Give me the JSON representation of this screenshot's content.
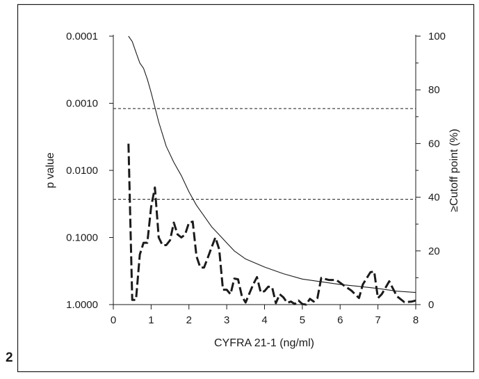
{
  "figure": {
    "panel_label": "2"
  },
  "chart_data": {
    "type": "line",
    "title": "",
    "xlabel": "CYFRA 21-1 (ng/ml)",
    "ylabel": "p value",
    "y2label": "≥Cutoff point (%)",
    "xlim": [
      0,
      8
    ],
    "x_ticks": [
      0,
      1,
      2,
      3,
      4,
      5,
      6,
      7,
      8
    ],
    "y_scale": "log-reversed",
    "ylim": [
      0.0001,
      1.0
    ],
    "y_ticks": [
      "0.0001",
      "0.0010",
      "0.0100",
      "0.1000",
      "1.0000"
    ],
    "y2lim": [
      0,
      100
    ],
    "y2_ticks": [
      0,
      20,
      40,
      60,
      80,
      100
    ],
    "y2_minor_step": 10,
    "grid": false,
    "reference_lines_p": [
      0.0012,
      0.027
    ],
    "series": [
      {
        "name": "",
        "axis": "y",
        "style": "dashed-bold",
        "x": [
          0.4,
          0.5,
          0.6,
          0.7,
          0.8,
          0.9,
          1.0,
          1.1,
          1.2,
          1.3,
          1.4,
          1.5,
          1.6,
          1.7,
          1.8,
          1.9,
          2.0,
          2.1,
          2.2,
          2.3,
          2.4,
          2.5,
          2.6,
          2.7,
          2.8,
          2.9,
          3.0,
          3.1,
          3.2,
          3.3,
          3.4,
          3.5,
          3.6,
          3.7,
          3.8,
          3.9,
          4.0,
          4.1,
          4.2,
          4.3,
          4.4,
          4.5,
          4.6,
          4.7,
          4.8,
          4.9,
          5.0,
          5.1,
          5.2,
          5.3,
          5.4,
          5.5,
          5.7,
          5.9,
          6.1,
          6.3,
          6.5,
          6.6,
          6.8,
          6.9,
          7.0,
          7.1,
          7.3,
          7.5,
          7.7,
          7.9,
          8.0
        ],
        "values": [
          0.004,
          0.85,
          0.85,
          0.18,
          0.12,
          0.12,
          0.035,
          0.018,
          0.1,
          0.13,
          0.13,
          0.11,
          0.06,
          0.09,
          0.1,
          0.09,
          0.06,
          0.058,
          0.19,
          0.28,
          0.28,
          0.2,
          0.14,
          0.1,
          0.15,
          0.6,
          0.6,
          0.7,
          0.41,
          0.42,
          0.75,
          0.93,
          0.68,
          0.5,
          0.39,
          0.66,
          0.63,
          0.54,
          0.55,
          0.95,
          0.7,
          0.78,
          0.94,
          0.9,
          0.98,
          0.87,
          0.98,
          1.0,
          0.82,
          0.9,
          0.8,
          0.4,
          0.43,
          0.43,
          0.52,
          0.62,
          0.8,
          0.5,
          0.33,
          0.32,
          0.8,
          0.7,
          0.45,
          0.75,
          0.92,
          0.9,
          0.87
        ]
      },
      {
        "name": "",
        "axis": "y2",
        "style": "solid-thin",
        "x": [
          0.4,
          0.5,
          0.6,
          0.7,
          0.8,
          0.9,
          1.0,
          1.2,
          1.4,
          1.6,
          1.8,
          2.0,
          2.2,
          2.4,
          2.6,
          2.8,
          3.0,
          3.2,
          3.5,
          4.0,
          4.5,
          5.0,
          5.5,
          6.0,
          6.5,
          7.0,
          7.5,
          8.0
        ],
        "values": [
          100,
          98,
          94,
          90,
          88,
          84,
          79,
          68,
          59,
          53,
          48,
          42,
          37,
          33,
          29,
          26,
          23,
          20,
          17,
          14,
          11.5,
          9.5,
          8.5,
          7.5,
          6.8,
          6.0,
          5.0,
          4.5
        ]
      }
    ]
  }
}
